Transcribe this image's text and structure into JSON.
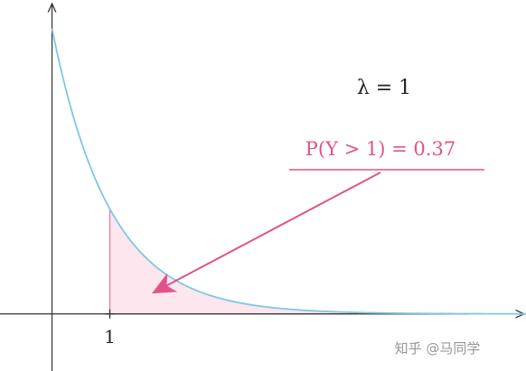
{
  "chart_data": {
    "type": "area",
    "function": "exp(-x)",
    "parameter_label": "λ = 1",
    "annotation": "P(Y > 1) = 0.37",
    "shaded_from_x": 1,
    "x_tick_labels": [
      "1"
    ],
    "x_ticks": [
      1
    ],
    "xlim": [
      -0.9,
      8.2
    ],
    "ylim": [
      -0.2,
      1.1
    ],
    "grid": false,
    "legend": "none",
    "colors": {
      "curve": "#7ec8e3",
      "shade_fill": "#fde6ee",
      "shade_edge": "#e8739e",
      "annotation": "#e0538a",
      "axis": "#333333"
    }
  },
  "watermark": "知乎 @马同学"
}
